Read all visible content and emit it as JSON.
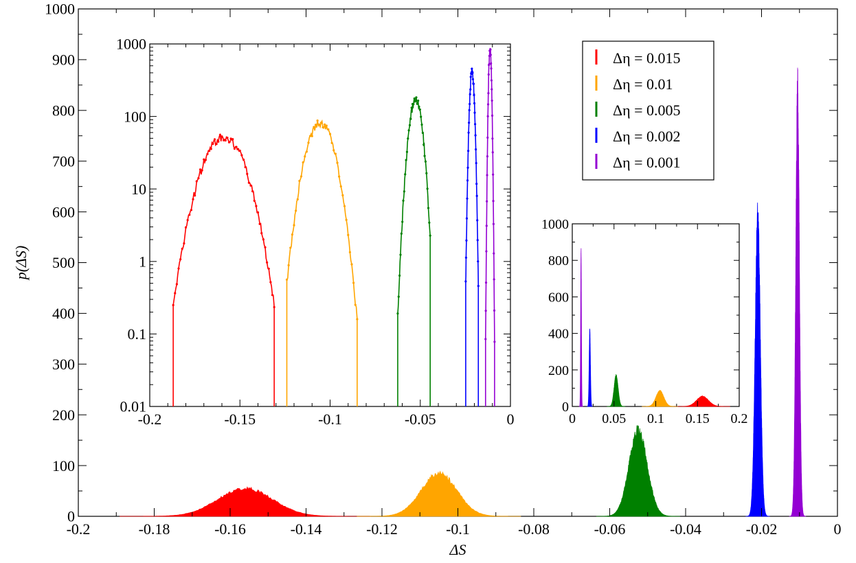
{
  "chart_data": [
    {
      "id": "main",
      "type": "area",
      "xlabel": "ΔS",
      "ylabel": "p(ΔS)",
      "xlim": [
        -0.2,
        0
      ],
      "ylim": [
        0,
        1000
      ],
      "x_ticks": [
        -0.2,
        -0.18,
        -0.16,
        -0.14,
        -0.12,
        -0.1,
        -0.08,
        -0.06,
        -0.04,
        -0.02,
        0
      ],
      "x_tick_labels": [
        "-0.2",
        "-0.18",
        "-0.16",
        "-0.14",
        "-0.12",
        "-0.1",
        "-0.08",
        "-0.06",
        "-0.04",
        "-0.02",
        "0"
      ],
      "y_ticks": [
        0,
        100,
        200,
        300,
        400,
        500,
        600,
        700,
        800,
        900,
        1000
      ],
      "y_tick_labels": [
        "0",
        "100",
        "200",
        "300",
        "400",
        "500",
        "600",
        "700",
        "800",
        "900",
        "1000"
      ],
      "grid": false,
      "legend_position": "top-right",
      "series": [
        {
          "name": "Δη = 0.015",
          "color": "#ff0000",
          "mean": -0.156,
          "sigma": 0.0072,
          "peak": 55
        },
        {
          "name": "Δη = 0.01",
          "color": "#ffa500",
          "mean": -0.105,
          "sigma": 0.0047,
          "peak": 85
        },
        {
          "name": "Δη = 0.005",
          "color": "#008000",
          "mean": -0.0525,
          "sigma": 0.0024,
          "peak": 170
        },
        {
          "name": "Δη = 0.002",
          "color": "#0000ff",
          "mean": -0.021,
          "sigma": 0.00068,
          "peak": 585
        },
        {
          "name": "Δη = 0.001",
          "color": "#9400d3",
          "mean": -0.0105,
          "sigma": 0.00047,
          "peak": 845
        }
      ]
    },
    {
      "id": "inset_log",
      "type": "line",
      "xlim": [
        -0.2,
        0
      ],
      "ylim": [
        0.01,
        1000
      ],
      "log_y": true,
      "x_ticks": [
        -0.2,
        -0.15,
        -0.1,
        -0.05,
        0
      ],
      "x_tick_labels": [
        "-0.2",
        "-0.15",
        "-0.1",
        "-0.05",
        "0"
      ],
      "y_ticks": [
        0.01,
        0.1,
        1,
        10,
        100,
        1000
      ],
      "y_tick_labels": [
        "0.01",
        "0.1",
        "1",
        "10",
        "100",
        "1000"
      ],
      "series": [
        {
          "color": "#ff0000",
          "mean": -0.159,
          "sigma": 0.0086,
          "peak": 52,
          "x_range": [
            -0.187,
            -0.131
          ]
        },
        {
          "color": "#ffa500",
          "mean": -0.1055,
          "sigma": 0.0058,
          "peak": 82,
          "x_range": [
            -0.124,
            -0.085
          ]
        },
        {
          "color": "#008000",
          "mean": -0.0525,
          "sigma": 0.0027,
          "peak": 170,
          "x_range": [
            -0.0625,
            -0.0445
          ]
        },
        {
          "color": "#0000ff",
          "mean": -0.0213,
          "sigma": 0.00095,
          "peak": 420,
          "x_range": [
            -0.0248,
            -0.0178
          ]
        },
        {
          "color": "#9400d3",
          "mean": -0.0113,
          "sigma": 0.00058,
          "peak": 845,
          "x_range": [
            -0.0138,
            -0.0088
          ]
        }
      ]
    },
    {
      "id": "inset_abs",
      "type": "area",
      "xlim": [
        0,
        0.2
      ],
      "ylim": [
        0,
        1000
      ],
      "x_ticks": [
        0,
        0.05,
        0.1,
        0.15,
        0.2
      ],
      "x_tick_labels": [
        "0",
        "0.05",
        "0.1",
        "0.15",
        "0.2"
      ],
      "y_ticks": [
        0,
        200,
        400,
        600,
        800,
        1000
      ],
      "y_tick_labels": [
        "0",
        "200",
        "400",
        "600",
        "800",
        "1000"
      ],
      "series": [
        {
          "color": "#ff0000",
          "mean": 0.156,
          "sigma": 0.0072,
          "peak": 55
        },
        {
          "color": "#ffa500",
          "mean": 0.105,
          "sigma": 0.0047,
          "peak": 85
        },
        {
          "color": "#008000",
          "mean": 0.0525,
          "sigma": 0.0024,
          "peak": 170
        },
        {
          "color": "#0000ff",
          "mean": 0.021,
          "sigma": 0.00075,
          "peak": 415
        },
        {
          "color": "#9400d3",
          "mean": 0.0105,
          "sigma": 0.00047,
          "peak": 845
        }
      ]
    }
  ]
}
